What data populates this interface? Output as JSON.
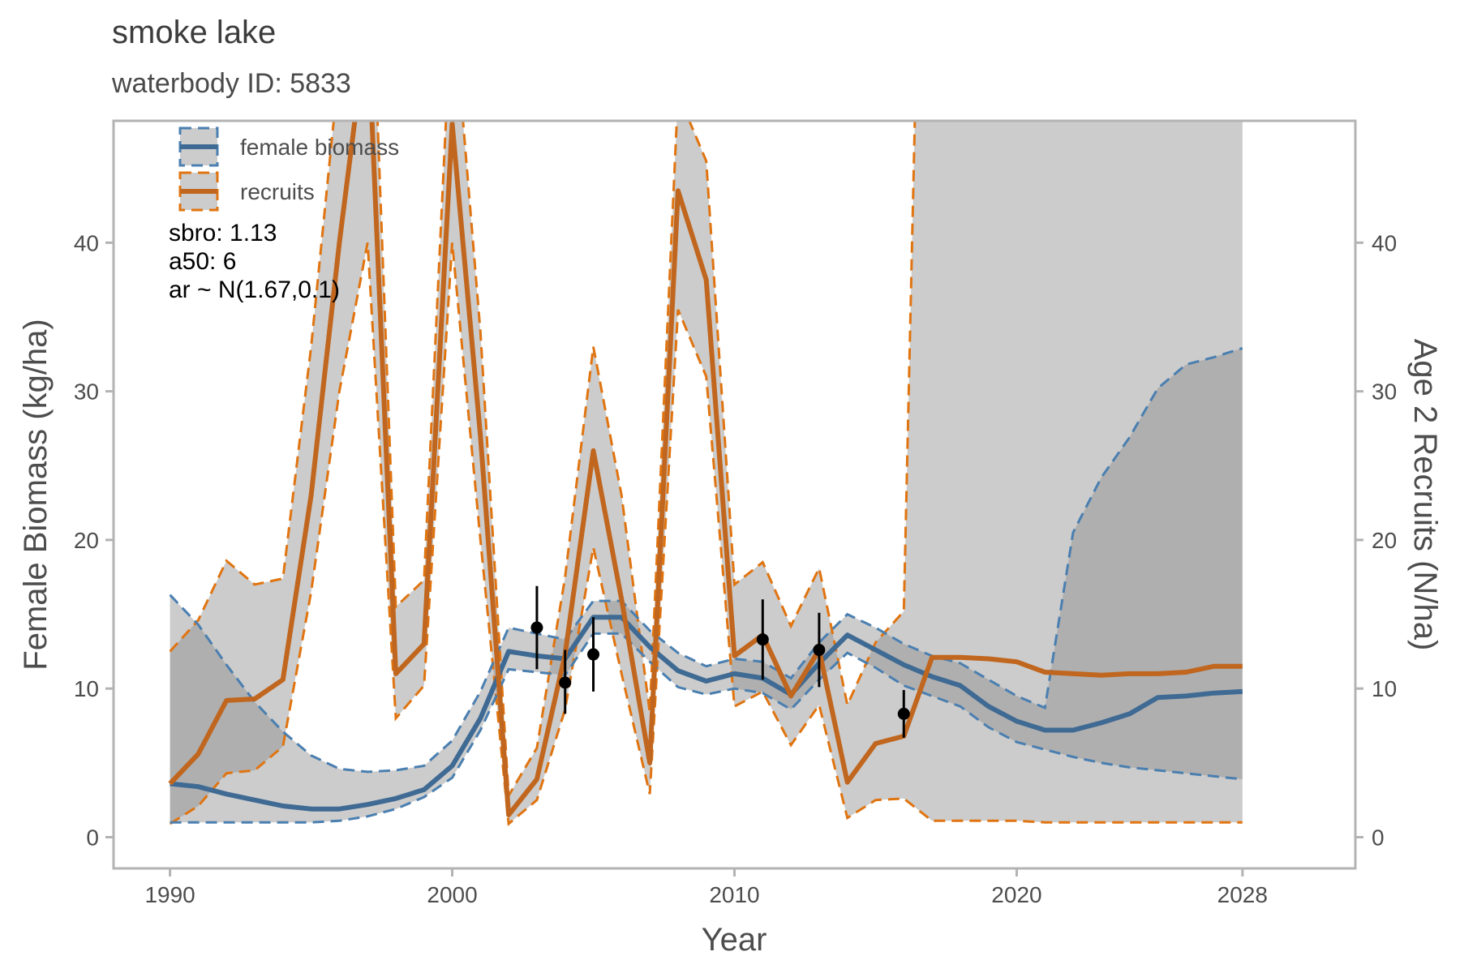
{
  "title": "smoke lake",
  "subtitle": "waterbody ID: 5833",
  "chart_data": {
    "type": "line",
    "xlabel": "Year",
    "ylabel": "Female Biomass (kg/ha)",
    "y2label": "Age 2 Recruits (N/ha)",
    "xlim": [
      1988,
      2032
    ],
    "ylim": [
      -2.1,
      48.2
    ],
    "xticks": [
      1990,
      2000,
      2010,
      2020,
      2028
    ],
    "yticks": [
      0,
      10,
      20,
      30,
      40
    ],
    "y2ticks": [
      0,
      10,
      20,
      30,
      40
    ],
    "grid": false,
    "legend_position": "top-left",
    "annotations": [
      "sbro: 1.13",
      "a50: 6",
      "ar ~ N(1.67,0.1)"
    ],
    "colors": {
      "biomass": "#3f6a93",
      "biomass_dash": "#4a7fb0",
      "recruits": "#c0661e",
      "recruits_dash": "#e07410",
      "band": "#cccccc",
      "overlap": "#a6a6a6",
      "points": "#000000",
      "frame": "#b3b3b3"
    },
    "series": [
      {
        "name": "female biomass",
        "x": [
          1990,
          1991,
          1992,
          1993,
          1994,
          1995,
          1996,
          1997,
          1998,
          1999,
          2000,
          2001,
          2002,
          2003,
          2004,
          2005,
          2006,
          2007,
          2008,
          2009,
          2010,
          2011,
          2012,
          2013,
          2014,
          2015,
          2016,
          2017,
          2018,
          2019,
          2020,
          2021,
          2022,
          2023,
          2024,
          2025,
          2026,
          2027,
          2028
        ],
        "y": [
          3.6,
          3.4,
          2.9,
          2.5,
          2.1,
          1.9,
          1.9,
          2.2,
          2.6,
          3.2,
          4.8,
          8.0,
          12.5,
          12.2,
          12.0,
          14.8,
          14.8,
          12.8,
          11.2,
          10.5,
          11.0,
          10.7,
          9.6,
          11.7,
          13.6,
          12.6,
          11.6,
          10.8,
          10.2,
          8.8,
          7.8,
          7.2,
          7.2,
          7.7,
          8.3,
          9.4,
          9.5,
          9.7,
          9.8
        ],
        "lower": [
          1.0,
          1.0,
          1.0,
          1.0,
          1.0,
          1.0,
          1.1,
          1.4,
          1.9,
          2.7,
          4.0,
          7.2,
          11.3,
          11.1,
          10.9,
          13.7,
          13.7,
          11.8,
          10.1,
          9.6,
          10.0,
          9.7,
          8.6,
          10.6,
          12.4,
          11.4,
          10.2,
          9.5,
          8.8,
          7.4,
          6.4,
          5.9,
          5.4,
          5.0,
          4.7,
          4.5,
          4.3,
          4.1,
          3.9
        ],
        "upper": [
          16.3,
          14.3,
          11.6,
          9.1,
          7.1,
          5.5,
          4.6,
          4.4,
          4.5,
          4.8,
          6.5,
          9.8,
          14.1,
          13.7,
          13.3,
          15.9,
          15.9,
          13.9,
          12.4,
          11.5,
          12.0,
          11.8,
          10.7,
          13.1,
          15.0,
          14.1,
          13.0,
          12.2,
          11.7,
          10.6,
          9.5,
          8.7,
          20.5,
          24.2,
          26.9,
          30.2,
          31.8,
          32.3,
          32.9
        ]
      },
      {
        "name": "recruits",
        "x": [
          1990,
          1991,
          1992,
          1993,
          1994,
          1995,
          1996,
          1997,
          1998,
          1999,
          2000,
          2001,
          2002,
          2003,
          2004,
          2005,
          2006,
          2007,
          2008,
          2009,
          2010,
          2011,
          2012,
          2013,
          2014,
          2015,
          2016,
          2017,
          2018,
          2019,
          2020,
          2021,
          2022,
          2023,
          2024,
          2025,
          2026,
          2027,
          2028
        ],
        "y": [
          3.6,
          5.6,
          9.2,
          9.3,
          10.6,
          23.0,
          40.0,
          55.0,
          11.0,
          13.0,
          48.0,
          27.0,
          1.5,
          3.9,
          12.3,
          26.0,
          16.0,
          5.0,
          43.5,
          37.5,
          12.2,
          13.6,
          9.5,
          12.6,
          3.7,
          6.3,
          6.8,
          12.1,
          12.1,
          12.0,
          11.8,
          11.1,
          11.0,
          10.9,
          11.0,
          11.0,
          11.1,
          11.5,
          11.5
        ],
        "lower": [
          0.9,
          2.1,
          4.3,
          4.5,
          6.1,
          16.5,
          30.0,
          40.0,
          8.0,
          10.2,
          40.0,
          20.0,
          0.9,
          2.5,
          8.6,
          19.5,
          11.0,
          2.9,
          35.5,
          31.0,
          8.8,
          9.8,
          6.2,
          8.9,
          1.3,
          2.5,
          2.6,
          1.1,
          1.1,
          1.1,
          1.1,
          1.0,
          1.0,
          1.0,
          1.0,
          1.0,
          1.0,
          1.0,
          1.0
        ],
        "upper": [
          12.5,
          14.6,
          18.6,
          17.0,
          17.4,
          33.0,
          52.0,
          66.0,
          15.5,
          17.3,
          57.0,
          34.0,
          2.8,
          6.0,
          17.5,
          33.0,
          23.0,
          8.4,
          50.0,
          45.5,
          17.0,
          18.5,
          14.2,
          18.1,
          8.9,
          13.1,
          15.2,
          100,
          100,
          100,
          100,
          100,
          100,
          100,
          100,
          100,
          100,
          100,
          100
        ]
      }
    ],
    "points": {
      "x": [
        2003,
        2004,
        2005,
        2011,
        2013,
        2016
      ],
      "y": [
        14.1,
        10.4,
        12.3,
        13.3,
        12.6,
        8.3
      ],
      "lower": [
        11.3,
        8.3,
        9.8,
        10.6,
        10.1,
        6.7
      ],
      "upper": [
        16.9,
        12.6,
        14.8,
        16.0,
        15.1,
        9.9
      ]
    }
  }
}
